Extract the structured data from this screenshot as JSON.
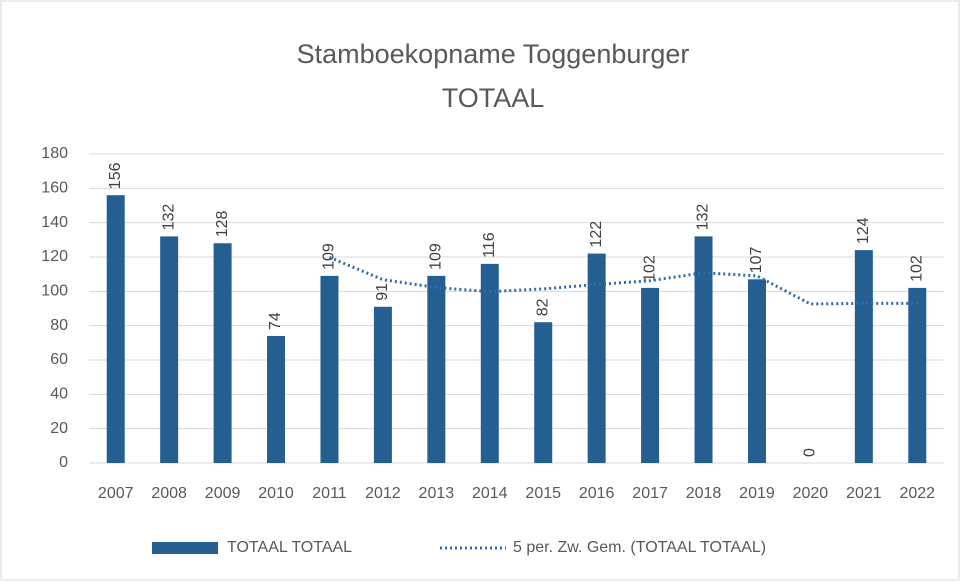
{
  "chart_data": {
    "type": "bar",
    "title": [
      "Stamboekopname Toggenburger",
      "TOTAAL"
    ],
    "categories": [
      "2007",
      "2008",
      "2009",
      "2010",
      "2011",
      "2012",
      "2013",
      "2014",
      "2015",
      "2016",
      "2017",
      "2018",
      "2019",
      "2020",
      "2021",
      "2022"
    ],
    "series": [
      {
        "name": "TOTAAL TOTAAL",
        "type": "bar",
        "color": "#255e91",
        "values": [
          156,
          132,
          128,
          74,
          109,
          91,
          109,
          116,
          82,
          122,
          102,
          132,
          107,
          0,
          124,
          102
        ]
      },
      {
        "name": "5 per. Zw. Gem. (TOTAAL TOTAAL)",
        "type": "line",
        "color": "#2e6da4",
        "values": [
          null,
          null,
          null,
          null,
          119.8,
          106.8,
          102.2,
          99.8,
          101.4,
          104,
          106.2,
          110.8,
          109,
          92.6,
          93,
          93
        ]
      }
    ],
    "ylim": [
      0,
      180
    ],
    "yticks": [
      0,
      20,
      40,
      60,
      80,
      100,
      120,
      140,
      160,
      180
    ],
    "grid": true,
    "legend": "bottom"
  }
}
